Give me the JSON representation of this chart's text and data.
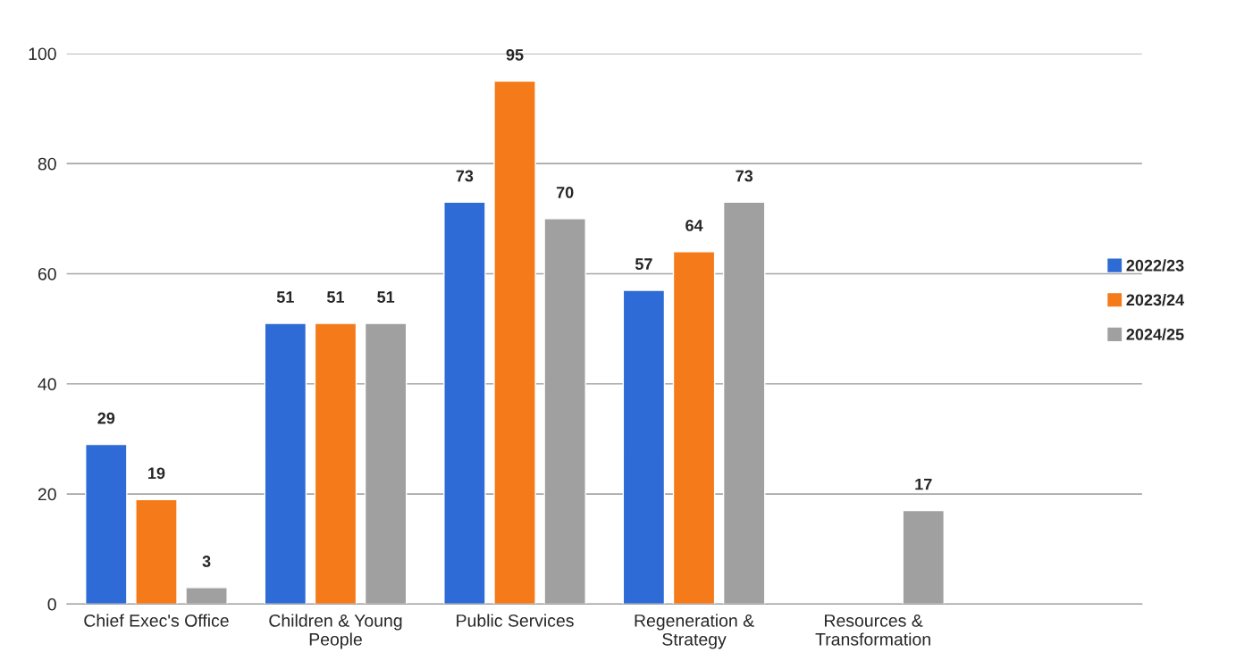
{
  "chart_data": {
    "type": "bar",
    "categories": [
      "Chief Exec's Office",
      "Children & Young\nPeople",
      "Public Services",
      "Regeneration &\nStrategy",
      "Resources &\nTransformation",
      null
    ],
    "series": [
      {
        "name": "2022/23",
        "color": "#2e6bd6",
        "values": [
          29,
          51,
          73,
          57,
          null,
          null
        ]
      },
      {
        "name": "2023/24",
        "color": "#f57a1a",
        "values": [
          19,
          51,
          95,
          64,
          null,
          null
        ]
      },
      {
        "name": "2024/25",
        "color": "#a0a0a0",
        "values": [
          3,
          51,
          70,
          73,
          17,
          null
        ]
      }
    ],
    "ylim": [
      0,
      100
    ],
    "yticks": [
      0,
      20,
      40,
      60,
      80,
      100
    ],
    "grid": "y",
    "legend": "right",
    "data_labels": true
  }
}
